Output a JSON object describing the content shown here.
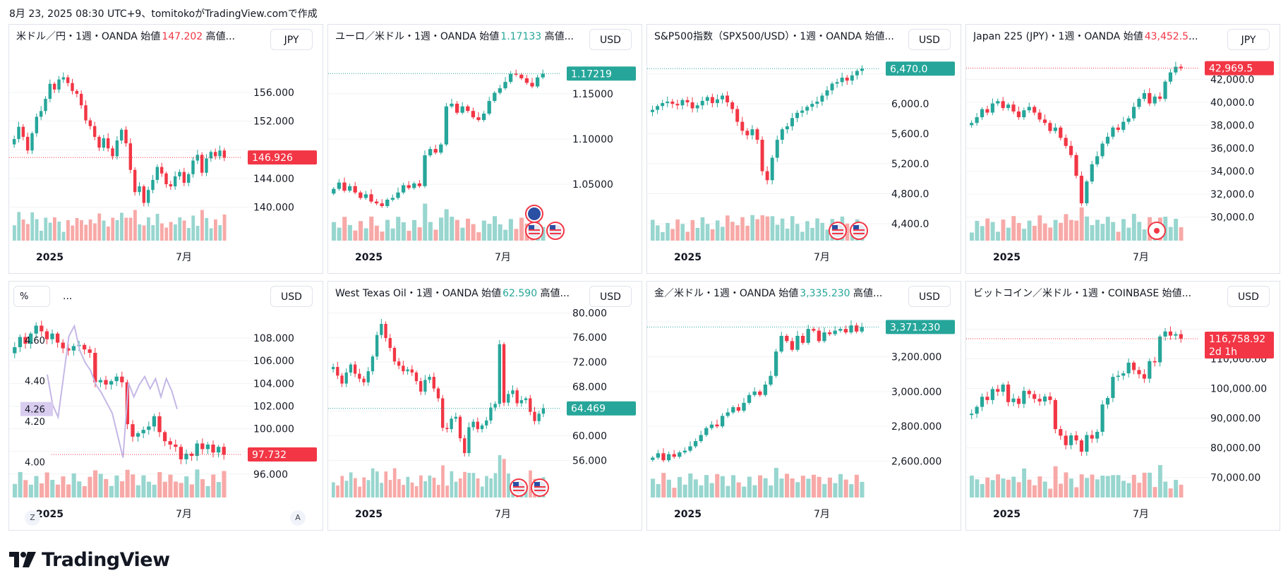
{
  "header": {
    "text": "8月 23, 2025 08:30 UTC+9、tomitokoがTradingView.comで作成"
  },
  "footer": {
    "brand": "TradingView"
  },
  "colors": {
    "up": "#26a69a",
    "down": "#f23645",
    "upVol": "#98d6cf",
    "downVol": "#f7a9a7",
    "grid": "#f2f3f5",
    "line": "#c5b7e6"
  },
  "panels": [
    {
      "title": "米ドル／円・1週・OANDA 始値",
      "open": "147.202",
      "openColor": "down",
      "tail": " 高値...",
      "currency": "JPY",
      "last": "146.926",
      "lastColor": "down",
      "flags": []
    },
    {
      "title": "ユーロ／米ドル・1週・OANDA 始値",
      "open": "1.17133",
      "openColor": "up",
      "tail": " 高値...",
      "currency": "USD",
      "last": "1.17219",
      "lastColor": "up",
      "flags": [
        "eu-flag-icon",
        "us-flag-icon",
        "us-flag-icon"
      ]
    },
    {
      "title": "S&P500指数（SPX500/USD）・1週・OANDA 始値...",
      "open": "",
      "openColor": "up",
      "tail": "",
      "currency": "USD",
      "last": "6,470.0",
      "lastColor": "up",
      "flags": [
        "us-flag-icon",
        "us-flag-icon"
      ]
    },
    {
      "title": "Japan 225 (JPY)・1週・OANDA 始値",
      "open": "43,452.5",
      "openColor": "down",
      "tail": "...",
      "currency": "JPY",
      "last": "42,969.5",
      "lastColor": "down",
      "flags": [
        "jp-flag-icon"
      ]
    },
    {
      "title": "",
      "open": "",
      "openColor": "up",
      "tail": "",
      "currency": "USD",
      "last": "97.732",
      "lastColor": "down",
      "pctLabel": "%",
      "dots": "...",
      "leftLast": "4.26",
      "flags": [],
      "z": "Z",
      "a": "A"
    },
    {
      "title": "West Texas Oil・1週・OANDA 始値",
      "open": "62.590",
      "openColor": "up",
      "tail": " 高値...",
      "currency": "USD",
      "last": "64.469",
      "lastColor": "up",
      "flags": [
        "us-flag-icon",
        "us-flag-icon"
      ]
    },
    {
      "title": "金／米ドル・1週・OANDA 始値",
      "open": "3,335.230",
      "openColor": "up",
      "tail": " 高値...",
      "currency": "USD",
      "last": "3,371.230",
      "lastColor": "up",
      "flags": []
    },
    {
      "title": "ビットコイン／米ドル・1週・COINBASE 始値...",
      "open": "",
      "openColor": "up",
      "tail": "",
      "currency": "USD",
      "last": "116,758.92",
      "lastSub": "2d 1h",
      "lastColor": "down",
      "flags": []
    }
  ],
  "chart_data": [
    {
      "type": "candlestick",
      "symbol": "USD/JPY",
      "xticks": [
        "2025",
        "7月"
      ],
      "yticks": [
        "156.000",
        "152.000",
        "148.000",
        "144.000",
        "140.000"
      ],
      "ylim": [
        137.5,
        161.5
      ],
      "last": 146.926,
      "closes": [
        149.5,
        151.2,
        149.8,
        147.9,
        150.3,
        152.6,
        153.4,
        155.1,
        157.2,
        156.4,
        157.8,
        158.1,
        157.3,
        156.2,
        155.8,
        154.2,
        152.1,
        151.3,
        149.8,
        148.3,
        149.6,
        148.2,
        147.1,
        149.3,
        150.8,
        148.9,
        145.2,
        142.1,
        142.9,
        140.6,
        142.4,
        143.8,
        145.6,
        144.7,
        143.2,
        142.9,
        144.3,
        144.9,
        143.4,
        144.6,
        146.5,
        147.3,
        144.8,
        146.8,
        147.7,
        147.1,
        147.9,
        146.9
      ]
    },
    {
      "type": "candlestick",
      "symbol": "EUR/USD",
      "xticks": [
        "2025",
        "7月"
      ],
      "yticks": [
        "1.15000",
        "1.10000",
        "1.05000"
      ],
      "ylim": [
        1.005,
        1.195
      ],
      "last": 1.17219,
      "closes": [
        1.045,
        1.052,
        1.043,
        1.048,
        1.041,
        1.035,
        1.039,
        1.031,
        1.029,
        1.026,
        1.033,
        1.035,
        1.041,
        1.049,
        1.046,
        1.051,
        1.048,
        1.082,
        1.089,
        1.085,
        1.094,
        1.136,
        1.139,
        1.129,
        1.136,
        1.131,
        1.124,
        1.121,
        1.128,
        1.142,
        1.151,
        1.156,
        1.163,
        1.172,
        1.171,
        1.167,
        1.162,
        1.158,
        1.168,
        1.172
      ]
    },
    {
      "type": "candlestick",
      "symbol": "SPX500/USD",
      "xticks": [
        "2025",
        "7月"
      ],
      "yticks": [
        "6,400.0",
        "6,000.0",
        "5,600.0",
        "5,200.0",
        "4,800.0",
        "4,400.0"
      ],
      "ylim": [
        4380,
        6680
      ],
      "last": 6470.0,
      "closes": [
        5920,
        5970,
        6010,
        6030,
        6000,
        5980,
        6050,
        6020,
        5940,
        5980,
        6040,
        6090,
        6010,
        6060,
        6110,
        6020,
        5930,
        5760,
        5640,
        5580,
        5660,
        5520,
        5100,
        4980,
        5280,
        5520,
        5660,
        5700,
        5810,
        5880,
        5910,
        5960,
        6000,
        6030,
        6110,
        6180,
        6270,
        6290,
        6350,
        6310,
        6380,
        6440,
        6470
      ]
    },
    {
      "type": "candlestick",
      "symbol": "JP225",
      "xticks": [
        "2025",
        "7月"
      ],
      "yticks": [
        "42,000.0",
        "40,000.0",
        "38,000.0",
        "36,000.0",
        "34,000.0",
        "32,000.0",
        "30,000.0"
      ],
      "ylim": [
        29300,
        44300
      ],
      "last": 42969.5,
      "closes": [
        38200,
        38700,
        39400,
        39100,
        39900,
        40100,
        39500,
        39800,
        39200,
        38700,
        39300,
        39600,
        39100,
        38500,
        38200,
        37500,
        37800,
        36900,
        36200,
        35400,
        33600,
        31200,
        33100,
        34600,
        35300,
        36400,
        37000,
        37800,
        37600,
        38300,
        38600,
        39600,
        40300,
        40800,
        39900,
        40500,
        40300,
        41800,
        42600,
        43100,
        42969
      ]
    },
    {
      "type": "candlestick+line",
      "symbol": "DXY / US10Y",
      "xticks": [
        "2025",
        "7月"
      ],
      "yticks": [
        "108.000",
        "106.000",
        "104.000",
        "102.000",
        "100.000",
        "98.000",
        "96.000"
      ],
      "leftTicks": [
        "4.60",
        "4.40",
        "4.20",
        "4.00"
      ],
      "ylim": [
        95.3,
        110.5
      ],
      "last": 97.732,
      "lineLast": 4.26,
      "closes": [
        107.2,
        108.1,
        107.5,
        108.4,
        109.1,
        108.6,
        107.9,
        108.4,
        107.6,
        107.1,
        106.9,
        107.3,
        107.4,
        107.0,
        106.7,
        104.1,
        104.3,
        103.9,
        104.2,
        104.6,
        104.1,
        100.4,
        99.3,
        99.6,
        99.9,
        100.2,
        101.1,
        99.7,
        98.9,
        98.6,
        98.4,
        97.3,
        97.8,
        97.6,
        98.7,
        98.2,
        98.6,
        97.9,
        98.4,
        97.7
      ],
      "line": [
        4.43,
        4.28,
        4.22,
        4.42,
        4.62,
        4.67,
        4.55,
        4.49,
        4.45,
        4.38,
        4.34,
        4.29,
        4.24,
        4.13,
        4.02,
        4.39,
        4.32,
        4.38,
        4.42,
        4.36,
        4.41,
        4.32,
        4.41,
        4.35,
        4.26
      ]
    },
    {
      "type": "candlestick",
      "symbol": "WTI",
      "xticks": [
        "2025",
        "7月"
      ],
      "yticks": [
        "80.000",
        "76.000",
        "72.000",
        "68.000",
        "64.000",
        "60.000",
        "56.000"
      ],
      "ylim": [
        52.5,
        80.5
      ],
      "last": 64.469,
      "closes": [
        71.2,
        69.8,
        68.5,
        70.3,
        71.6,
        70.1,
        69.3,
        68.7,
        70.5,
        72.9,
        76.4,
        78.2,
        75.9,
        74.3,
        72.1,
        71.4,
        70.5,
        70.8,
        70.3,
        68.9,
        67.2,
        69.1,
        69.6,
        67.7,
        66.1,
        61.3,
        61.1,
        62.8,
        63.1,
        59.6,
        57.2,
        61.4,
        62.3,
        61.1,
        61.7,
        62.5,
        64.6,
        65.2,
        74.9,
        65.4,
        66.8,
        67.4,
        65.3,
        65.8,
        66.1,
        63.9,
        62.4,
        63.6,
        64.5
      ]
    },
    {
      "type": "candlestick",
      "symbol": "XAU/USD",
      "xticks": [
        "2025",
        "7月"
      ],
      "yticks": [
        "3,400.000",
        "3,200.000",
        "3,000.000",
        "2,800.000",
        "2,600.000"
      ],
      "ylim": [
        2480,
        3470
      ],
      "last": 3371.23,
      "closes": [
        2620,
        2645,
        2605,
        2640,
        2625,
        2650,
        2660,
        2685,
        2715,
        2750,
        2790,
        2810,
        2800,
        2860,
        2880,
        2910,
        2890,
        2935,
        2980,
        3000,
        2980,
        3040,
        3090,
        3230,
        3320,
        3290,
        3240,
        3320,
        3280,
        3360,
        3350,
        3290,
        3340,
        3330,
        3350,
        3360,
        3340,
        3380,
        3345,
        3371
      ]
    },
    {
      "type": "candlestick",
      "symbol": "BTC/USD",
      "xticks": [
        "2025",
        "7月"
      ],
      "yticks": [
        "120,000.00",
        "110,000.00",
        "100,000.00",
        "90,000.00",
        "80,000.00",
        "70,000.00"
      ],
      "ylim": [
        68500,
        126500
      ],
      "last": 116758.92,
      "closes": [
        91500,
        93800,
        97200,
        96100,
        99800,
        98900,
        101300,
        95400,
        96600,
        94800,
        99200,
        98100,
        96500,
        95600,
        97300,
        96100,
        86300,
        84100,
        80900,
        84200,
        82500,
        78700,
        84300,
        83100,
        85400,
        94600,
        96800,
        103900,
        104300,
        105100,
        108700,
        106200,
        104800,
        103300,
        109200,
        108800,
        117500,
        119200,
        117800,
        118300,
        116800
      ]
    }
  ]
}
